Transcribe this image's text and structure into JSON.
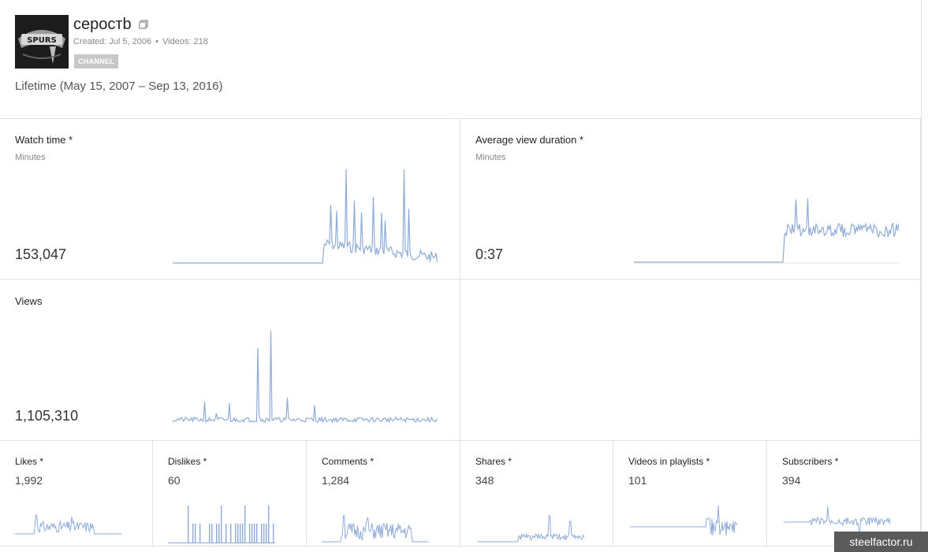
{
  "channel": {
    "name": "серостb",
    "created": "Created: Jul 5, 2006",
    "videos": "Videos: 218",
    "badge": "CHANNEL",
    "logo_text": "SPURS"
  },
  "period": "Lifetime (May 15, 2007 – Sep 13, 2016)",
  "metrics": {
    "watch_time": {
      "title": "Watch time *",
      "unit": "Minutes",
      "value": "153,047"
    },
    "avg_view_duration": {
      "title": "Average view duration *",
      "unit": "Minutes",
      "value": "0:37"
    },
    "views": {
      "title": "Views",
      "value": "1,105,310"
    }
  },
  "small_metrics": [
    {
      "title": "Likes *",
      "value": "1,992"
    },
    {
      "title": "Dislikes *",
      "value": "60"
    },
    {
      "title": "Comments *",
      "value": "1,284"
    },
    {
      "title": "Shares *",
      "value": "348"
    },
    {
      "title": "Videos in playlists *",
      "value": "101"
    },
    {
      "title": "Subscribers *",
      "value": "394"
    }
  ],
  "colors": {
    "line": "#8eabd8",
    "border": "#e0e0e0"
  },
  "watermark": "steelfactor.ru"
}
